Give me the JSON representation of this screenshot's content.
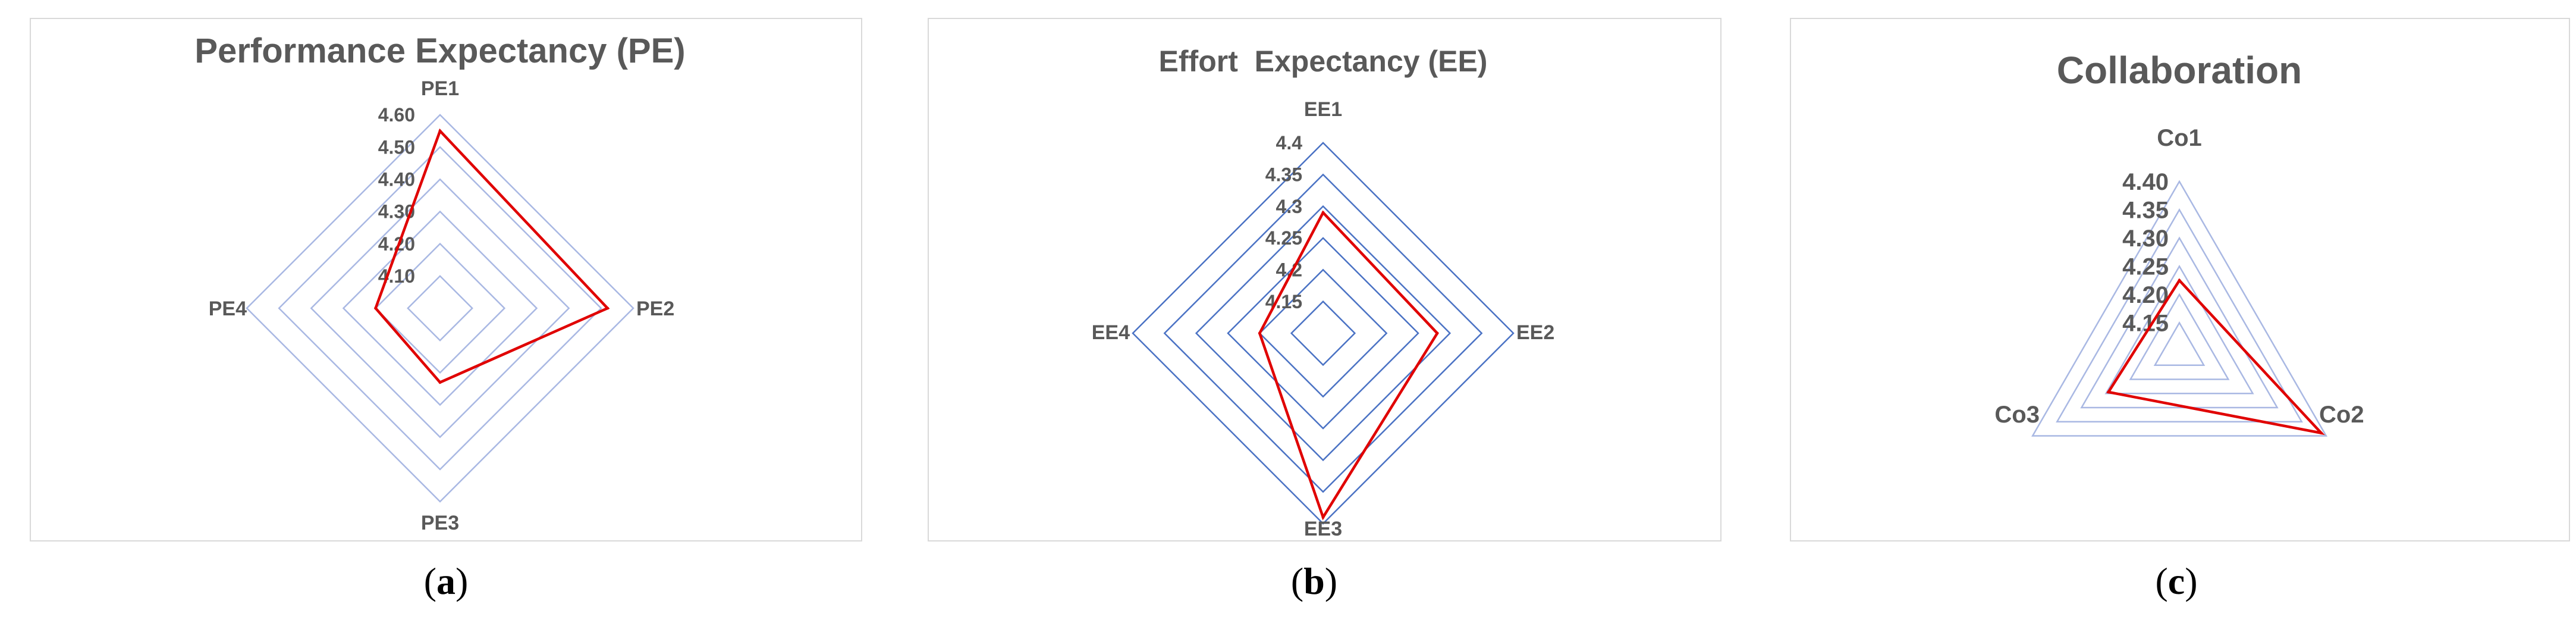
{
  "chart_data": [
    {
      "type": "radar",
      "title": "Performance Expectancy (PE)",
      "categories": [
        "PE1",
        "PE2",
        "PE3",
        "PE4"
      ],
      "tick_labels": [
        "4.10",
        "4.20",
        "4.30",
        "4.40",
        "4.50",
        "4.60"
      ],
      "rlim": [
        4.0,
        4.6
      ],
      "values": [
        4.55,
        4.52,
        4.23,
        4.2
      ],
      "series_color": "#e00000",
      "grid_color": "#a9b8e3",
      "grid": true,
      "sublabel": {
        "open": "(",
        "letter": "a",
        "close": ")"
      }
    },
    {
      "type": "radar",
      "title": "Effort  Expectancy (EE)",
      "categories": [
        "EE1",
        "EE2",
        "EE3",
        "EE4"
      ],
      "tick_labels": [
        "4.15",
        "4.2",
        "4.25",
        "4.3",
        "4.35",
        "4.4"
      ],
      "rlim": [
        4.1,
        4.4
      ],
      "values": [
        4.29,
        4.28,
        4.39,
        4.2
      ],
      "series_color": "#e00000",
      "grid_color": "#4a72c4",
      "grid": true,
      "sublabel": {
        "open": "(",
        "letter": "b",
        "close": ")"
      }
    },
    {
      "type": "radar",
      "title": "Collaboration",
      "categories": [
        "Co1",
        "Co2",
        "Co3"
      ],
      "tick_labels": [
        "4.15",
        "4.20",
        "4.25",
        "4.30",
        "4.35",
        "4.40"
      ],
      "rlim": [
        4.1,
        4.4
      ],
      "values": [
        4.225,
        4.39,
        4.245
      ],
      "series_color": "#e00000",
      "grid_color": "#a9b8e3",
      "grid": true,
      "sublabel": {
        "open": "(",
        "letter": "c",
        "close": ")"
      }
    }
  ]
}
